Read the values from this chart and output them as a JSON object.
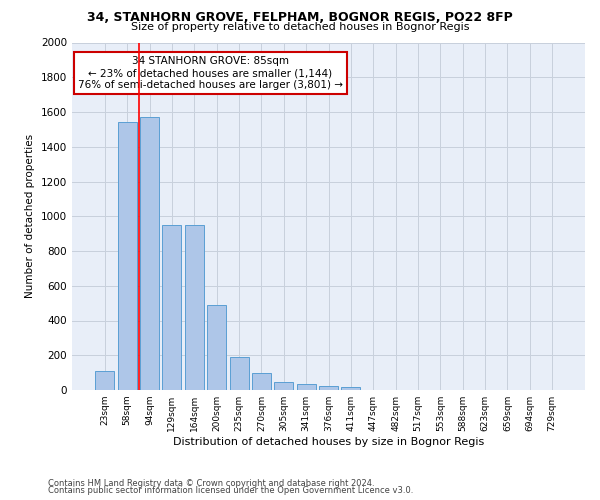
{
  "title": "34, STANHORN GROVE, FELPHAM, BOGNOR REGIS, PO22 8FP",
  "subtitle": "Size of property relative to detached houses in Bognor Regis",
  "xlabel": "Distribution of detached houses by size in Bognor Regis",
  "ylabel": "Number of detached properties",
  "categories": [
    "23sqm",
    "58sqm",
    "94sqm",
    "129sqm",
    "164sqm",
    "200sqm",
    "235sqm",
    "270sqm",
    "305sqm",
    "341sqm",
    "376sqm",
    "411sqm",
    "447sqm",
    "482sqm",
    "517sqm",
    "553sqm",
    "588sqm",
    "623sqm",
    "659sqm",
    "694sqm",
    "729sqm"
  ],
  "values": [
    110,
    1540,
    1570,
    950,
    950,
    490,
    190,
    95,
    45,
    35,
    22,
    15,
    0,
    0,
    0,
    0,
    0,
    0,
    0,
    0,
    0
  ],
  "bar_color": "#aec6e8",
  "bar_edge_color": "#5a9fd4",
  "red_line_x": 1.55,
  "annotation_text": "34 STANHORN GROVE: 85sqm\n← 23% of detached houses are smaller (1,144)\n76% of semi-detached houses are larger (3,801) →",
  "annotation_box_color": "#ffffff",
  "annotation_box_edge_color": "#cc0000",
  "ylim": [
    0,
    2000
  ],
  "yticks": [
    0,
    200,
    400,
    600,
    800,
    1000,
    1200,
    1400,
    1600,
    1800,
    2000
  ],
  "footer_line1": "Contains HM Land Registry data © Crown copyright and database right 2024.",
  "footer_line2": "Contains public sector information licensed under the Open Government Licence v3.0.",
  "background_color": "#ffffff",
  "plot_bg_color": "#e8eef8",
  "grid_color": "#c8d0dc"
}
